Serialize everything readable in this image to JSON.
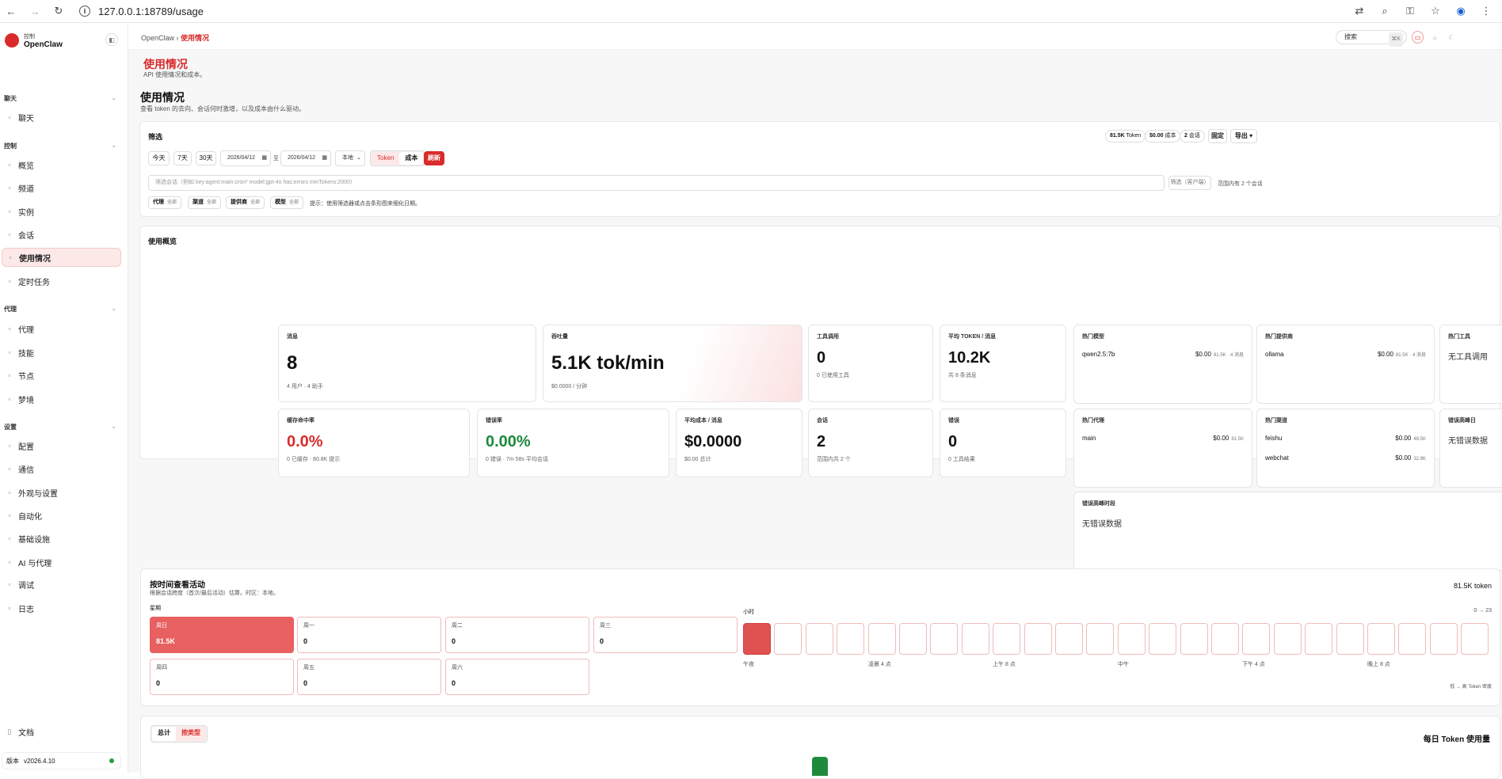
{
  "browser": {
    "url": "127.0.0.1:18789/usage"
  },
  "sidebar": {
    "brand_small": "控制",
    "brand_name": "OpenClaw",
    "sections": [
      {
        "label": "聊天",
        "items": [
          {
            "label": "聊天",
            "icon": "chat-icon"
          }
        ]
      },
      {
        "label": "控制",
        "items": [
          {
            "label": "概览",
            "icon": "bar-chart-icon"
          },
          {
            "label": "频道",
            "icon": "link-icon"
          },
          {
            "label": "实例",
            "icon": "instance-icon"
          },
          {
            "label": "会话",
            "icon": "session-icon"
          },
          {
            "label": "使用情况",
            "icon": "bar-chart-icon",
            "active": true
          },
          {
            "label": "定时任务",
            "icon": "clock-icon"
          }
        ]
      },
      {
        "label": "代理",
        "items": [
          {
            "label": "代理",
            "icon": "folder-icon"
          },
          {
            "label": "技能",
            "icon": "bolt-icon"
          },
          {
            "label": "节点",
            "icon": "node-icon"
          },
          {
            "label": "梦境",
            "icon": "moon-icon"
          }
        ]
      },
      {
        "label": "设置",
        "items": [
          {
            "label": "配置",
            "icon": "gear-icon"
          },
          {
            "label": "通信",
            "icon": "send-icon"
          },
          {
            "label": "外观与设置",
            "icon": "appearance-icon"
          },
          {
            "label": "自动化",
            "icon": "terminal-icon"
          },
          {
            "label": "基础设施",
            "icon": "globe-icon"
          },
          {
            "label": "AI 与代理",
            "icon": "ai-icon"
          },
          {
            "label": "调试",
            "icon": "bug-icon"
          },
          {
            "label": "日志",
            "icon": "log-icon"
          }
        ]
      }
    ],
    "docs": "文档",
    "version_label": "版本",
    "version": "v2026.4.10"
  },
  "topbar": {
    "crumb_root": "OpenClaw",
    "crumb_current": "使用情况",
    "search_placeholder": "搜索",
    "search_kbd": "⌘K"
  },
  "page": {
    "title": "使用情况",
    "subtitle": "API 使用情况和成本。",
    "section_title": "使用情况",
    "section_sub": "查看 token 的去向、会话何时激增，以及成本由什么驱动。"
  },
  "filters": {
    "title": "筛选",
    "summary": [
      {
        "value": "81.5K",
        "unit": "Token"
      },
      {
        "value": "$0.00",
        "unit": "成本"
      },
      {
        "value": "2",
        "unit": "会话"
      }
    ],
    "pin": "固定",
    "export": "导出 ▾",
    "ranges": [
      "今天",
      "7天",
      "30天"
    ],
    "date_from": "2026/04/12",
    "to": "至",
    "date_to": "2026/04/12",
    "tz": "本地",
    "mode": [
      "Token",
      "成本"
    ],
    "refresh": "刷新",
    "query_placeholder": "筛选会话（例如 key:agent:main:cron* model:gpt-4o has:errors minTokens:2000）",
    "client_btn": "筛选（客户端）",
    "range_note": "范围内有 2 个会话",
    "chips": [
      {
        "label": "代理",
        "val": "全部"
      },
      {
        "label": "渠道",
        "val": "全部"
      },
      {
        "label": "提供商",
        "val": "全部"
      },
      {
        "label": "模型",
        "val": "全部"
      }
    ],
    "hint": "提示：使用筛选器或点击条形图来细化日期。"
  },
  "overview": {
    "title": "使用概览",
    "stats": [
      {
        "label": "消息",
        "value": "8",
        "sub": "4 用户 · 4 助手"
      },
      {
        "label": "吞吐量",
        "value": "5.1K tok/min",
        "sub": "$0.0000 / 分钟"
      },
      {
        "label": "工具调用",
        "value": "0",
        "sub": "0 已使用工具"
      },
      {
        "label": "平均 TOKEN / 消息",
        "value": "10.2K",
        "sub": "共 8 条消息"
      },
      {
        "label": "缓存命中率",
        "value": "0.0%",
        "sub": "0 已缓存 · 80.8K 提示"
      },
      {
        "label": "错误率",
        "value": "0.00%",
        "sub": "0 错误 · 7m 58s 平均会话"
      },
      {
        "label": "平均成本 / 消息",
        "value": "$0.0000",
        "sub": "$0.00 总计"
      },
      {
        "label": "会话",
        "value": "2",
        "sub": "范围内共 2 个"
      },
      {
        "label": "错误",
        "value": "0",
        "sub": "0 工具结果"
      }
    ],
    "top_models": {
      "title": "热门模型",
      "rows": [
        {
          "name": "qwen2.5:7b",
          "cost": "$0.00",
          "meta": "81.5K · 4 消息"
        }
      ]
    },
    "top_providers": {
      "title": "热门提供商",
      "rows": [
        {
          "name": "ollama",
          "cost": "$0.00",
          "meta": "81.5K · 4 消息"
        }
      ]
    },
    "top_tools": {
      "title": "热门工具",
      "empty": "无工具调用"
    },
    "top_agents": {
      "title": "热门代理",
      "rows": [
        {
          "name": "main",
          "cost": "$0.00",
          "meta": "81.5K"
        }
      ]
    },
    "top_channels": {
      "title": "热门渠道",
      "rows": [
        {
          "name": "feishu",
          "cost": "$0.00",
          "meta": "48.5K"
        },
        {
          "name": "webchat",
          "cost": "$0.00",
          "meta": "32.9K"
        }
      ]
    },
    "peak_days": {
      "title": "错误高峰日",
      "empty": "无错误数据"
    },
    "peak_hours": {
      "title": "错误高峰时段",
      "empty": "无错误数据"
    }
  },
  "activity": {
    "title": "按时间查看活动",
    "sub": "根据会话跨度（首次/最后活动）估算。时区：本地。",
    "total": "81.5K token",
    "weekday_label": "星期",
    "days": [
      {
        "name": "周日",
        "count": "81.5K",
        "intensity": 1
      },
      {
        "name": "周一",
        "count": "0",
        "intensity": 0
      },
      {
        "name": "周二",
        "count": "0",
        "intensity": 0
      },
      {
        "name": "周三",
        "count": "0",
        "intensity": 0
      },
      {
        "name": "周四",
        "count": "0",
        "intensity": 0
      },
      {
        "name": "周五",
        "count": "0",
        "intensity": 0
      },
      {
        "name": "周六",
        "count": "0",
        "intensity": 0
      }
    ],
    "hour_label": "小时",
    "hour_range": "0 → 23",
    "hours": [
      1,
      0,
      0,
      0,
      0,
      0,
      0,
      0,
      0,
      0,
      0,
      0,
      0,
      0,
      0,
      0,
      0,
      0,
      0,
      0,
      0,
      0,
      0,
      0
    ],
    "hour_ticks": [
      "午夜",
      "凌晨 4 点",
      "上午 8 点",
      "中午",
      "下午 4 点",
      "晚上 8 点"
    ],
    "legend": "低 → 高 Token 密度"
  },
  "daily": {
    "tabs": [
      "总计",
      "按类型"
    ],
    "title": "每日 Token 使用量"
  },
  "colors": {
    "accent": "#d92b2b",
    "good": "#1e8a3c",
    "hot": "#e05252"
  }
}
